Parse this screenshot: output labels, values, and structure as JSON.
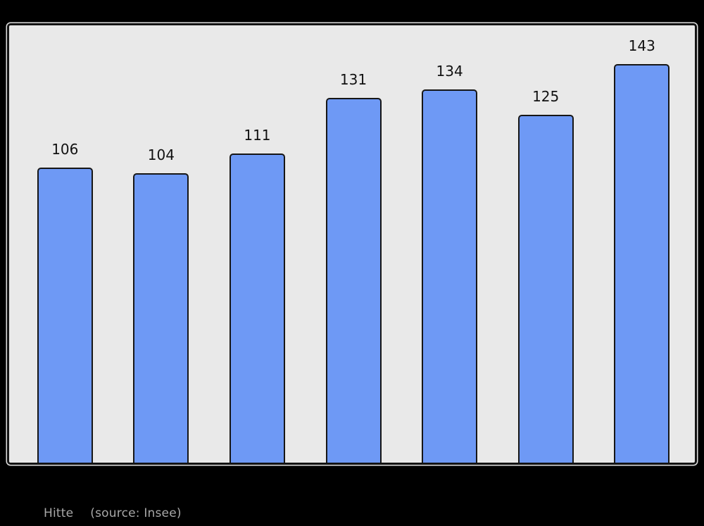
{
  "figure": {
    "background_color": "#000000",
    "plot_background_color": "#e9e9e9",
    "plot_border_color": "#141414"
  },
  "caption": {
    "series_label": "Hitte",
    "source_note": "(source: Insee)",
    "color": "#a8a8a8"
  },
  "chart_data": {
    "type": "bar",
    "title": "",
    "values": [
      106,
      104,
      111,
      131,
      134,
      125,
      143
    ],
    "bar_labels": [
      "106",
      "104",
      "111",
      "131",
      "134",
      "125",
      "143"
    ],
    "ylim": [
      0,
      157
    ],
    "grid": false,
    "legend": false,
    "x_tick_labels_visible": false,
    "y_axis_visible": false,
    "bar_color": "#6e99f5",
    "bar_border_color": "#161616",
    "value_label_color": "#111111"
  }
}
